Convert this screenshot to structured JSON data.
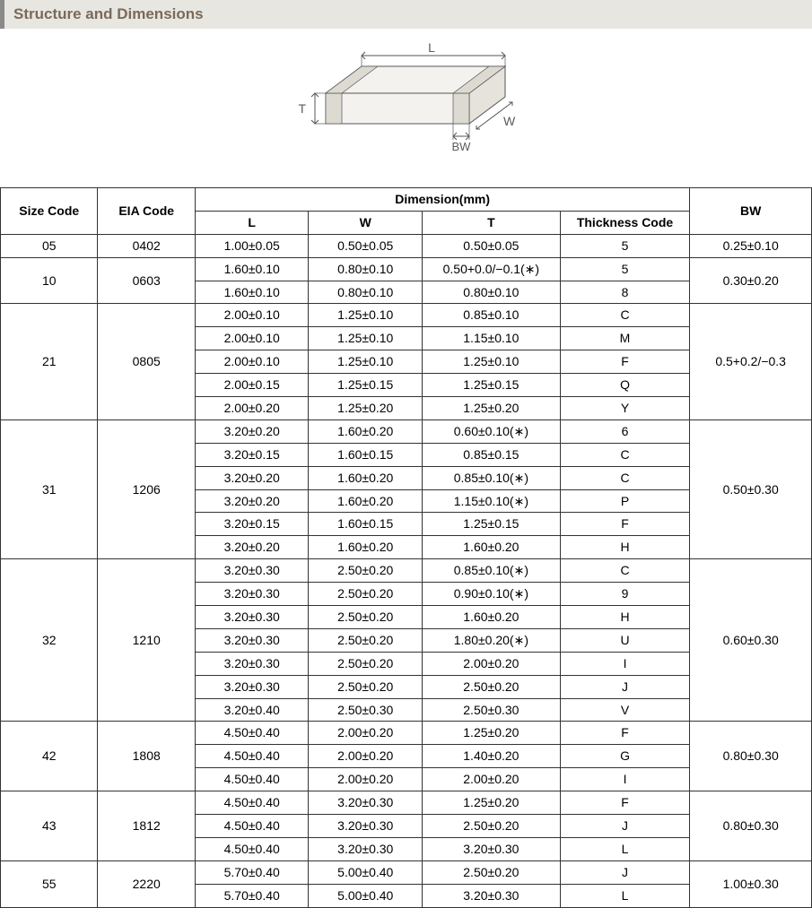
{
  "header": {
    "title": "Structure and Dimensions"
  },
  "diagram": {
    "labels": {
      "L": "L",
      "W": "W",
      "T": "T",
      "BW": "BW"
    },
    "stroke": "#555555",
    "fill": "#f4f2ee",
    "arrow": "#555555",
    "text_color": "#5a5a5a",
    "font_size": 14
  },
  "table": {
    "headers": {
      "size": "Size Code",
      "eia": "EIA Code",
      "dim": "Dimension(mm)",
      "L": "L",
      "W": "W",
      "T": "T",
      "thk": "Thickness  Code",
      "BW": "BW"
    },
    "groups": [
      {
        "size": "05",
        "eia": "0402",
        "bw": "0.25±0.10",
        "rows": [
          {
            "L": "1.00±0.05",
            "W": "0.50±0.05",
            "T": "0.50±0.05",
            "thk": "5"
          }
        ]
      },
      {
        "size": "10",
        "eia": "0603",
        "bw": "0.30±0.20",
        "rows": [
          {
            "L": "1.60±0.10",
            "W": "0.80±0.10",
            "T": "0.50+0.0/−0.1(∗)",
            "thk": "5"
          },
          {
            "L": "1.60±0.10",
            "W": "0.80±0.10",
            "T": "0.80±0.10",
            "thk": "8"
          }
        ]
      },
      {
        "size": "21",
        "eia": "0805",
        "bw": "0.5+0.2/−0.3",
        "rows": [
          {
            "L": "2.00±0.10",
            "W": "1.25±0.10",
            "T": "0.85±0.10",
            "thk": "C"
          },
          {
            "L": "2.00±0.10",
            "W": "1.25±0.10",
            "T": "1.15±0.10",
            "thk": "M"
          },
          {
            "L": "2.00±0.10",
            "W": "1.25±0.10",
            "T": "1.25±0.10",
            "thk": "F"
          },
          {
            "L": "2.00±0.15",
            "W": "1.25±0.15",
            "T": "1.25±0.15",
            "thk": "Q"
          },
          {
            "L": "2.00±0.20",
            "W": "1.25±0.20",
            "T": "1.25±0.20",
            "thk": "Y"
          }
        ]
      },
      {
        "size": "31",
        "eia": "1206",
        "bw": "0.50±0.30",
        "rows": [
          {
            "L": "3.20±0.20",
            "W": "1.60±0.20",
            "T": "0.60±0.10(∗)",
            "thk": "6"
          },
          {
            "L": "3.20±0.15",
            "W": "1.60±0.15",
            "T": "0.85±0.15",
            "thk": "C"
          },
          {
            "L": "3.20±0.20",
            "W": "1.60±0.20",
            "T": "0.85±0.10(∗)",
            "thk": "C"
          },
          {
            "L": "3.20±0.20",
            "W": "1.60±0.20",
            "T": "1.15±0.10(∗)",
            "thk": "P"
          },
          {
            "L": "3.20±0.15",
            "W": "1.60±0.15",
            "T": "1.25±0.15",
            "thk": "F"
          },
          {
            "L": "3.20±0.20",
            "W": "1.60±0.20",
            "T": "1.60±0.20",
            "thk": "H"
          }
        ]
      },
      {
        "size": "32",
        "eia": "1210",
        "bw": "0.60±0.30",
        "rows": [
          {
            "L": "3.20±0.30",
            "W": "2.50±0.20",
            "T": "0.85±0.10(∗)",
            "thk": "C"
          },
          {
            "L": "3.20±0.30",
            "W": "2.50±0.20",
            "T": "0.90±0.10(∗)",
            "thk": "9"
          },
          {
            "L": "3.20±0.30",
            "W": "2.50±0.20",
            "T": "1.60±0.20",
            "thk": "H"
          },
          {
            "L": "3.20±0.30",
            "W": "2.50±0.20",
            "T": "1.80±0.20(∗)",
            "thk": "U"
          },
          {
            "L": "3.20±0.30",
            "W": "2.50±0.20",
            "T": "2.00±0.20",
            "thk": "I"
          },
          {
            "L": "3.20±0.30",
            "W": "2.50±0.20",
            "T": "2.50±0.20",
            "thk": "J"
          },
          {
            "L": "3.20±0.40",
            "W": "2.50±0.30",
            "T": "2.50±0.30",
            "thk": "V"
          }
        ]
      },
      {
        "size": "42",
        "eia": "1808",
        "bw": "0.80±0.30",
        "rows": [
          {
            "L": "4.50±0.40",
            "W": "2.00±0.20",
            "T": "1.25±0.20",
            "thk": "F"
          },
          {
            "L": "4.50±0.40",
            "W": "2.00±0.20",
            "T": "1.40±0.20",
            "thk": "G"
          },
          {
            "L": "4.50±0.40",
            "W": "2.00±0.20",
            "T": "2.00±0.20",
            "thk": "I"
          }
        ]
      },
      {
        "size": "43",
        "eia": "1812",
        "bw": "0.80±0.30",
        "rows": [
          {
            "L": "4.50±0.40",
            "W": "3.20±0.30",
            "T": "1.25±0.20",
            "thk": "F"
          },
          {
            "L": "4.50±0.40",
            "W": "3.20±0.30",
            "T": "2.50±0.20",
            "thk": "J"
          },
          {
            "L": "4.50±0.40",
            "W": "3.20±0.30",
            "T": "3.20±0.30",
            "thk": "L"
          }
        ]
      },
      {
        "size": "55",
        "eia": "2220",
        "bw": "1.00±0.30",
        "rows": [
          {
            "L": "5.70±0.40",
            "W": "5.00±0.40",
            "T": "2.50±0.20",
            "thk": "J"
          },
          {
            "L": "5.70±0.40",
            "W": "5.00±0.40",
            "T": "3.20±0.30",
            "thk": "L"
          }
        ]
      }
    ]
  }
}
